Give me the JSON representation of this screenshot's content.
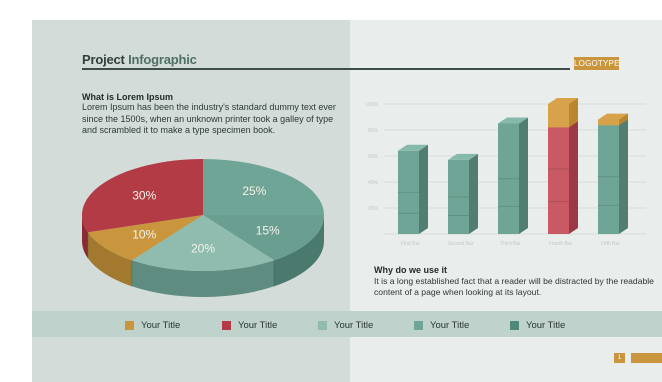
{
  "header": {
    "title_plain": "Project",
    "title_accent": "Infographic",
    "logotype": "LOGOTYPE"
  },
  "intro": {
    "heading": "What is Lorem Ipsum",
    "body": "Lorem Ipsum has been the industry's standard dummy text ever since the 1500s, when an unknown printer took a galley of type and scrambled it to make a type specimen book."
  },
  "outro": {
    "heading": "Why do we use it",
    "body": "It is a long established fact that a reader will be distracted by the readable content of a page when looking at its layout."
  },
  "legend": [
    {
      "label": "Your Title",
      "color": "#c9963d"
    },
    {
      "label": "Your Title",
      "color": "#b23b45"
    },
    {
      "label": "Your Title",
      "color": "#8fbcae"
    },
    {
      "label": "Your Title",
      "color": "#6fa596"
    },
    {
      "label": "Your Title",
      "color": "#4f8878"
    }
  ],
  "page_number": "1",
  "chart_data": [
    {
      "type": "pie",
      "slices": [
        {
          "label": "25%",
          "value": 25,
          "color": "#6fa596",
          "side": "#4f7f72"
        },
        {
          "label": "15%",
          "value": 15,
          "color": "#6a9e90",
          "side": "#497a6d"
        },
        {
          "label": "20%",
          "value": 20,
          "color": "#8fbcae",
          "side": "#5f8c80"
        },
        {
          "label": "10%",
          "value": 10,
          "color": "#c9963d",
          "side": "#a2792f"
        },
        {
          "label": "30%",
          "value": 30,
          "color": "#b23b45",
          "side": "#8a2a33"
        }
      ]
    },
    {
      "type": "bar",
      "categories": [
        "First Bar",
        "Second Bar",
        "Third Bar",
        "Fourth Bar",
        "Fifth Bar"
      ],
      "values": [
        64,
        57,
        85,
        100,
        88
      ],
      "ylim": [
        0,
        100
      ],
      "yticks": [
        "20%",
        "40%",
        "60%",
        "80%",
        "100%"
      ],
      "grid": true,
      "bars": [
        {
          "color": "#6fa596",
          "top": "#85b9ab",
          "side": "#527e72"
        },
        {
          "color": "#6fa596",
          "top": "#85b9ab",
          "side": "#527e72"
        },
        {
          "color": "#6fa596",
          "top": "#85b9ab",
          "side": "#527e72"
        },
        {
          "color": "#c95a64",
          "top": "#d8a24b",
          "side": "#9b3a44",
          "cap_color": "#d8a24b",
          "cap_fraction": 0.18
        },
        {
          "color": "#6fa596",
          "top": "#d8a24b",
          "side": "#527e72",
          "cap_color": "#d8a24b",
          "cap_fraction": 0.05
        }
      ]
    }
  ]
}
